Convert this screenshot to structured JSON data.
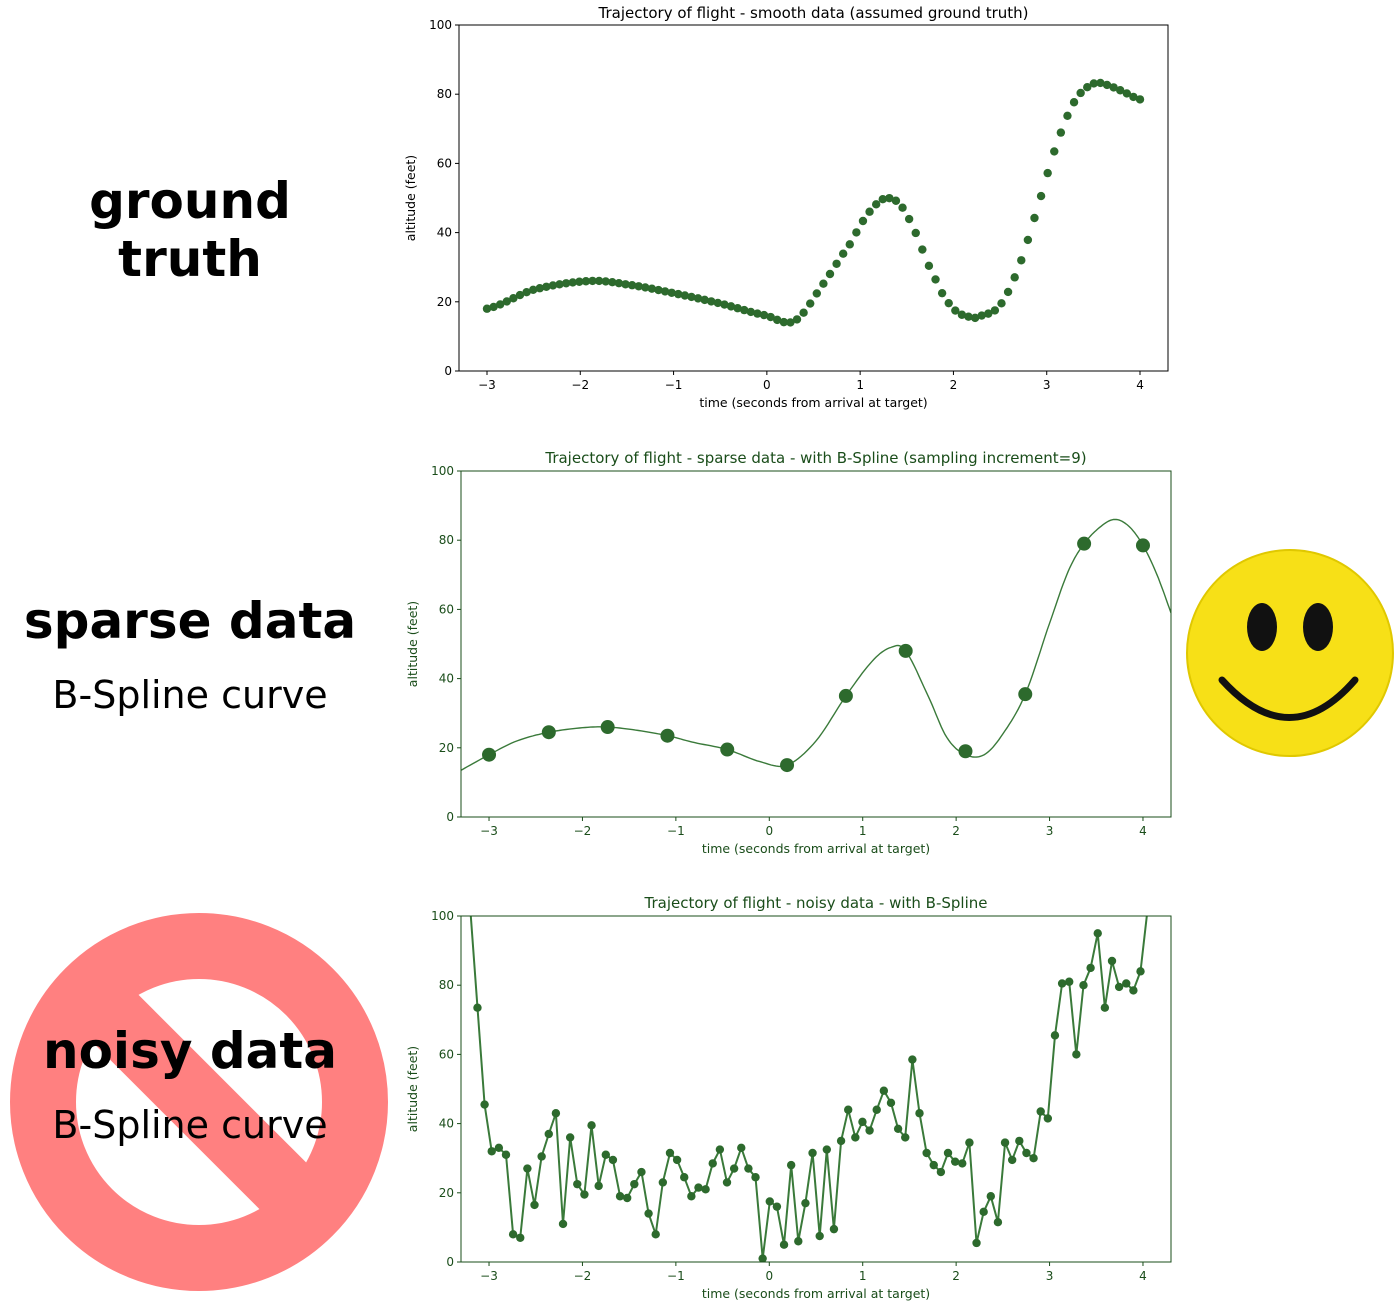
{
  "labels": {
    "ground": "ground truth",
    "sparse": "sparse data",
    "sparse_sub": "B-Spline curve",
    "noisy": "noisy data",
    "noisy_sub": "B-Spline curve"
  },
  "icons": {
    "smiley": "smiley-face-icon",
    "prohibition": "no-entry-prohibition-icon"
  },
  "colors": {
    "marker": "#2d6a2d",
    "line": "#3a7a3a",
    "smiley_fill": "#f7e017",
    "prohibition": "#ff8080"
  },
  "chart_data": [
    {
      "type": "scatter",
      "title": "Trajectory of flight - smooth data (assumed ground truth)",
      "xlabel": "time (seconds from arrival at target)",
      "ylabel": "altitude (feet)",
      "xlim": [
        -3.3,
        4.3
      ],
      "ylim": [
        0,
        100
      ],
      "xticks": [
        -3,
        -2,
        -1,
        0,
        1,
        2,
        3,
        4
      ],
      "xtick_labels": [
        "−3",
        "−2",
        "−1",
        "0",
        "1",
        "2",
        "3",
        "4"
      ],
      "yticks": [
        0,
        20,
        40,
        60,
        80,
        100
      ],
      "ytick_labels": [
        "0",
        "20",
        "40",
        "60",
        "80",
        "100"
      ],
      "grid": false,
      "x_range": [
        -3,
        4
      ],
      "point_count": 100,
      "key_points": {
        "x": [
          -3,
          -2.5,
          -1.9,
          -1.5,
          -1.0,
          -0.5,
          0.0,
          0.3,
          0.6,
          0.9,
          1.1,
          1.3,
          1.5,
          1.8,
          2.0,
          2.2,
          2.3,
          2.5,
          2.7,
          2.9,
          3.1,
          3.3,
          3.5,
          3.6,
          3.8,
          4.0
        ],
        "y": [
          18,
          23.5,
          26,
          25,
          22.5,
          19.5,
          16,
          14.5,
          25,
          37,
          46,
          50,
          45,
          27,
          18,
          15.5,
          16,
          19,
          30,
          47,
          65,
          78,
          83,
          83,
          81,
          78.5
        ]
      }
    },
    {
      "type": "scatter",
      "title": "Trajectory of flight -  sparse data - with B-Spline (sampling increment=9)",
      "xlabel": "time (seconds from arrival at target)",
      "ylabel": "altitude (feet)",
      "xlim": [
        -3.3,
        4.3
      ],
      "ylim": [
        0,
        100
      ],
      "xticks": [
        -3,
        -2,
        -1,
        0,
        1,
        2,
        3,
        4
      ],
      "xtick_labels": [
        "−3",
        "−2",
        "−1",
        "0",
        "1",
        "2",
        "3",
        "4"
      ],
      "yticks": [
        0,
        20,
        40,
        60,
        80,
        100
      ],
      "ytick_labels": [
        "0",
        "20",
        "40",
        "60",
        "80",
        "100"
      ],
      "grid": false,
      "points": {
        "x": [
          -3.0,
          -2.36,
          -1.73,
          -1.09,
          -0.45,
          0.19,
          0.82,
          1.46,
          2.1,
          2.74,
          3.37,
          4.0
        ],
        "y": [
          18,
          24.5,
          26,
          23.5,
          19.5,
          15,
          35,
          48,
          19,
          35.5,
          79,
          78.5
        ]
      },
      "spline": {
        "x": [
          -3.3,
          -3.0,
          -2.7,
          -2.36,
          -2.0,
          -1.73,
          -1.4,
          -1.09,
          -0.8,
          -0.45,
          -0.1,
          0.19,
          0.5,
          0.82,
          1.1,
          1.3,
          1.46,
          1.7,
          1.9,
          2.1,
          2.3,
          2.5,
          2.74,
          3.0,
          3.2,
          3.37,
          3.55,
          3.7,
          3.85,
          4.0,
          4.15,
          4.3
        ],
        "y": [
          13.5,
          18,
          22,
          24.5,
          25.8,
          26,
          25,
          23.5,
          21.5,
          19.5,
          16,
          15,
          22,
          35,
          45,
          49,
          48,
          35,
          23,
          18,
          18,
          24,
          35.5,
          56,
          71,
          79,
          84,
          86,
          84,
          78.5,
          70,
          59
        ]
      }
    },
    {
      "type": "line",
      "title": "Trajectory of flight -  noisy data  -  with B-Spline",
      "xlabel": "time (seconds from arrival at target)",
      "ylabel": "altitude (feet)",
      "xlim": [
        -3.3,
        4.3
      ],
      "ylim": [
        0,
        100
      ],
      "xticks": [
        -3,
        -2,
        -1,
        0,
        1,
        2,
        3,
        4
      ],
      "xtick_labels": [
        "−3",
        "−2",
        "−1",
        "0",
        "1",
        "2",
        "3",
        "4"
      ],
      "yticks": [
        0,
        20,
        40,
        60,
        80,
        100
      ],
      "ytick_labels": [
        "0",
        "20",
        "40",
        "60",
        "80",
        "100"
      ],
      "grid": false,
      "y": [
        102,
        73.5,
        45.5,
        32,
        33,
        31,
        8,
        7,
        27,
        16.5,
        30.5,
        37,
        43,
        11,
        36,
        22.5,
        19.5,
        39.5,
        22,
        31,
        29.5,
        19,
        18.5,
        22.5,
        26,
        14,
        8,
        23,
        31.5,
        29.5,
        24.5,
        19,
        21.5,
        21,
        28.5,
        32.5,
        23,
        27,
        33,
        27,
        24.5,
        1,
        17.5,
        16,
        5,
        28,
        6,
        17,
        31.5,
        7.5,
        32.5,
        9.5,
        35,
        44,
        36,
        40.5,
        38,
        44,
        49.5,
        46,
        38.5,
        36,
        58.5,
        43,
        31.5,
        28,
        26,
        31.5,
        29,
        28.5,
        34.5,
        5.5,
        14.5,
        19,
        11.5,
        34.5,
        29.5,
        35,
        31.5,
        30,
        43.5,
        41.5,
        65.5,
        80.5,
        81,
        60,
        80,
        85,
        95,
        73.5,
        87,
        79.5,
        80.5,
        78.5,
        84,
        102
      ]
    }
  ]
}
